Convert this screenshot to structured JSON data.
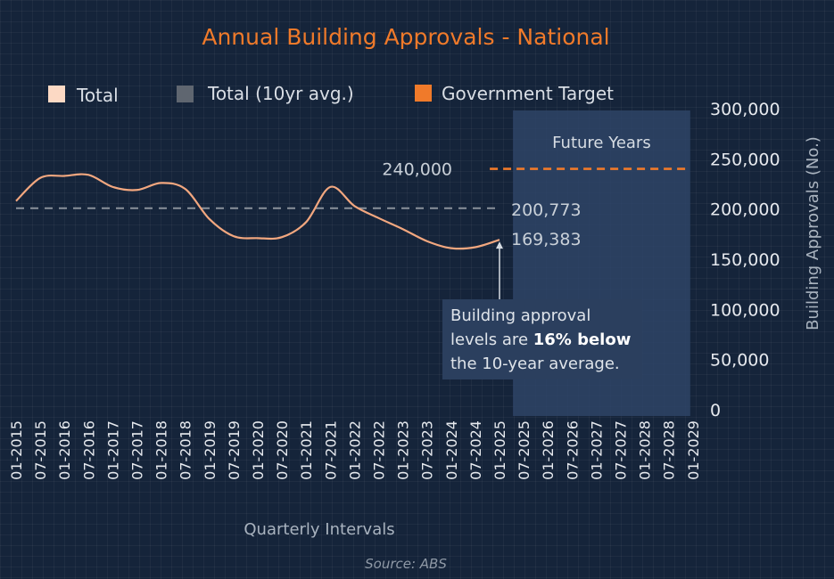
{
  "chart_data": {
    "type": "line",
    "title": "Annual Building Approvals - National",
    "xlabel": "Quarterly Intervals",
    "ylabel": "Building Approvals (No.)",
    "ylim": [
      0,
      300000
    ],
    "yticks": [
      0,
      50000,
      100000,
      150000,
      200000,
      250000,
      300000
    ],
    "ytick_labels": [
      "0",
      "50,000",
      "100,000",
      "150,000",
      "200,000",
      "250,000",
      "300,000"
    ],
    "x_categories": [
      "01-2015",
      "07-2015",
      "01-2016",
      "07-2016",
      "01-2017",
      "07-2017",
      "01-2018",
      "07-2018",
      "01-2019",
      "07-2019",
      "01-2020",
      "07-2020",
      "01-2021",
      "07-2021",
      "01-2022",
      "07-2022",
      "01-2023",
      "07-2023",
      "01-2024",
      "07-2024",
      "01-2025",
      "07-2025",
      "01-2026",
      "07-2026",
      "01-2027",
      "07-2027",
      "01-2028",
      "07-2028",
      "01-2029"
    ],
    "legend": {
      "placement": "top",
      "entries": [
        {
          "label": "Total",
          "color": "#fcd9c4"
        },
        {
          "label": "Total (10yr avg.)",
          "color": "#5f6670"
        },
        {
          "label": "Government Target",
          "color": "#f07a2a"
        }
      ]
    },
    "series": [
      {
        "name": "Total",
        "color": "#f2a77f",
        "x": [
          "01-2015",
          "07-2015",
          "01-2016",
          "07-2016",
          "01-2017",
          "07-2017",
          "01-2018",
          "07-2018",
          "01-2019",
          "07-2019",
          "01-2020",
          "07-2020",
          "01-2021",
          "07-2021",
          "01-2022",
          "07-2022",
          "01-2023",
          "07-2023",
          "01-2024",
          "07-2024",
          "01-2025"
        ],
        "values": [
          208000,
          231000,
          233000,
          234000,
          222000,
          219000,
          226000,
          220000,
          190000,
          173000,
          171000,
          172000,
          187000,
          222000,
          203000,
          191000,
          180000,
          168000,
          161000,
          162000,
          169383
        ]
      },
      {
        "name": "Total (10yr avg.)",
        "color": "#8a919a",
        "x": [
          "01-2015",
          "01-2025"
        ],
        "values": [
          200773,
          200773
        ]
      },
      {
        "name": "Government Target",
        "color": "#f07a2a",
        "x": [
          "07-2025",
          "01-2029"
        ],
        "values": [
          240000,
          240000
        ]
      }
    ],
    "annotations": {
      "target_label": "240,000",
      "avg_label": "200,773",
      "latest_label": "169,383",
      "future_label": "Future Years",
      "future_range": [
        "07-2025",
        "01-2029"
      ],
      "note_part1": "Building approval",
      "note_part2": "levels are ",
      "note_bold": "16% below",
      "note_part3": "the 10-year average."
    },
    "source": "Source: ABS"
  }
}
